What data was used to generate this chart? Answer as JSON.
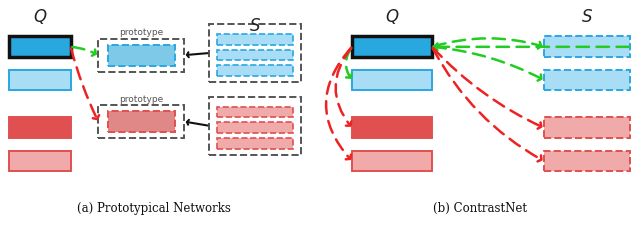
{
  "fig_width": 6.4,
  "fig_height": 2.36,
  "dpi": 100,
  "bg_color": "#ffffff",
  "blue_dark": "#29a8e0",
  "blue_light": "#a8ddf5",
  "blue_proto": "#7ec8e8",
  "red_dark": "#e05050",
  "red_light": "#f0aaaa",
  "red_proto": "#e08888",
  "green_arrow": "#22cc22",
  "red_arrow": "#ee2222",
  "black": "#111111",
  "gray_dashed": "#555555",
  "gray_text": "#555555",
  "caption_a": "(a) Prototypical Networks",
  "caption_b": "(b) ContrastNet",
  "label_Q": "$Q$",
  "label_S": "$S$"
}
